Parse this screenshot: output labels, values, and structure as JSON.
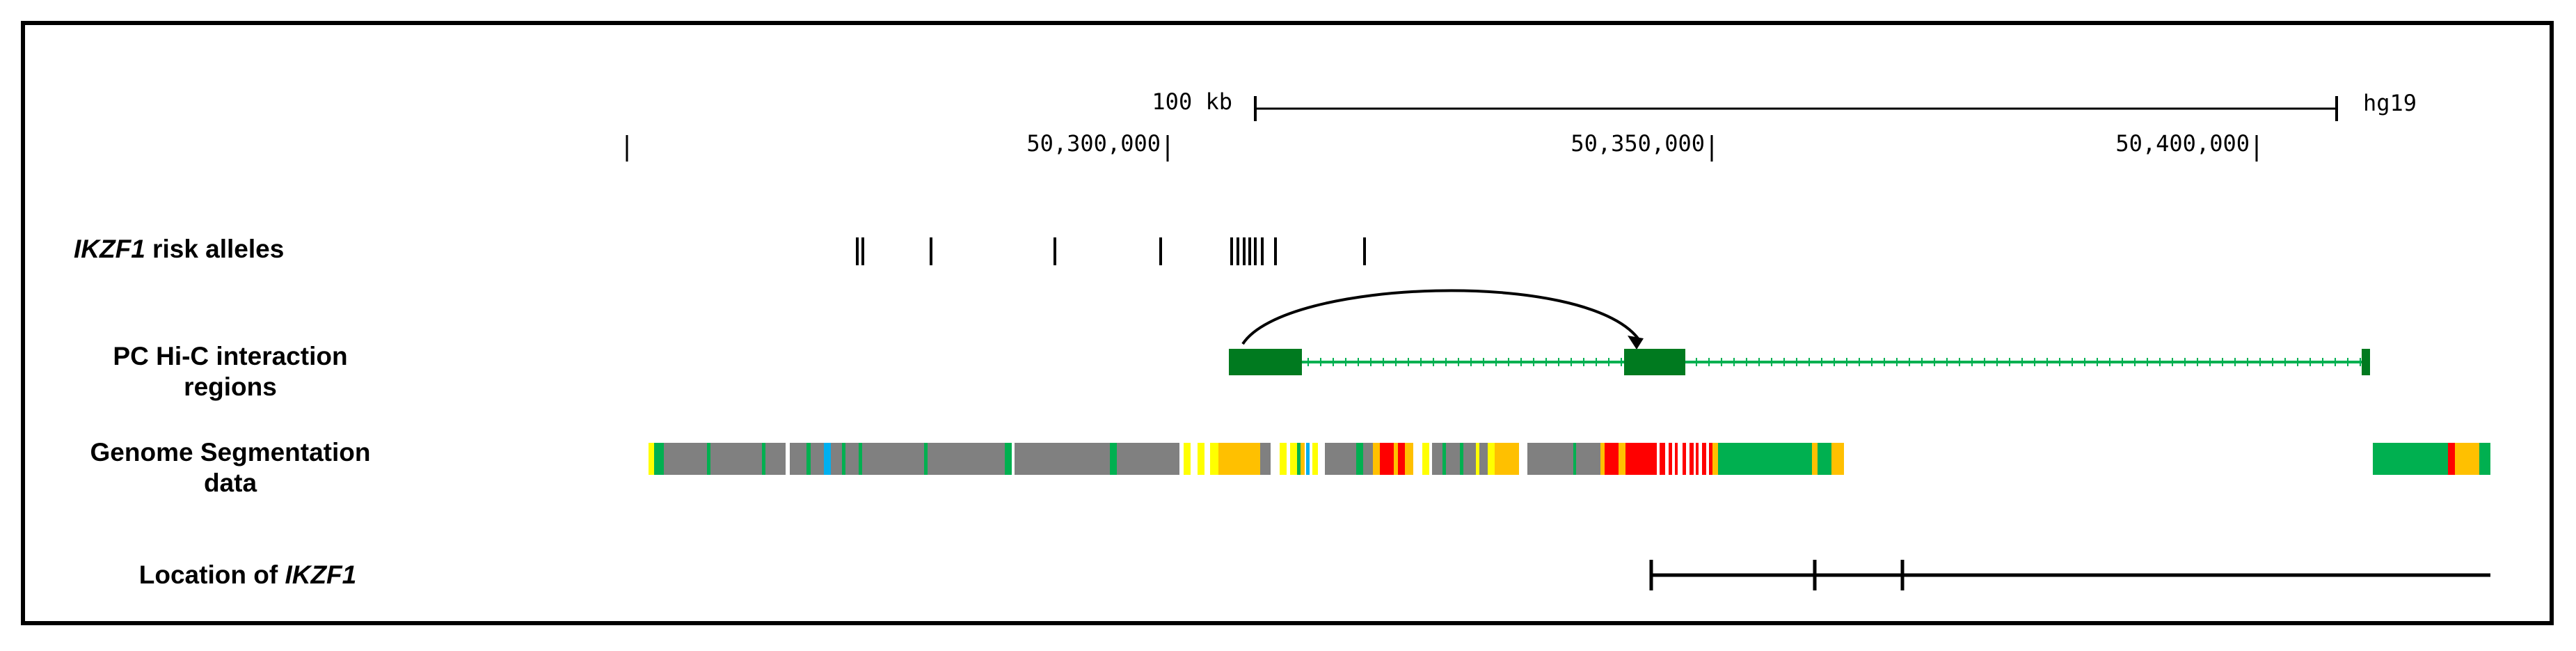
{
  "ruler": {
    "scale_label": "100 kb",
    "assembly": "hg19",
    "positions": [
      {
        "label": "50,300,000",
        "coord": 50300000
      },
      {
        "label": "50,350,000",
        "coord": 50350000
      },
      {
        "label": "50,400,000",
        "coord": 50400000
      }
    ]
  },
  "tracks": {
    "risk_alleles": {
      "label_italic": "IKZF1",
      "label_rest": " risk alleles"
    },
    "hic": {
      "label_line1": "PC Hi-C interaction",
      "label_line2": "regions"
    },
    "segmentation": {
      "label_line1": "Genome Segmentation",
      "label_line2": "data"
    },
    "gene": {
      "label_rest": "Location of ",
      "label_italic": "IKZF1"
    }
  },
  "colors": {
    "gray": "#808080",
    "green": "#00b050",
    "dark_green": "#007a1f",
    "yellow": "#ffff00",
    "orange": "#ffc000",
    "red": "#ff0000",
    "blue": "#00b0f0",
    "black": "#000000"
  }
}
